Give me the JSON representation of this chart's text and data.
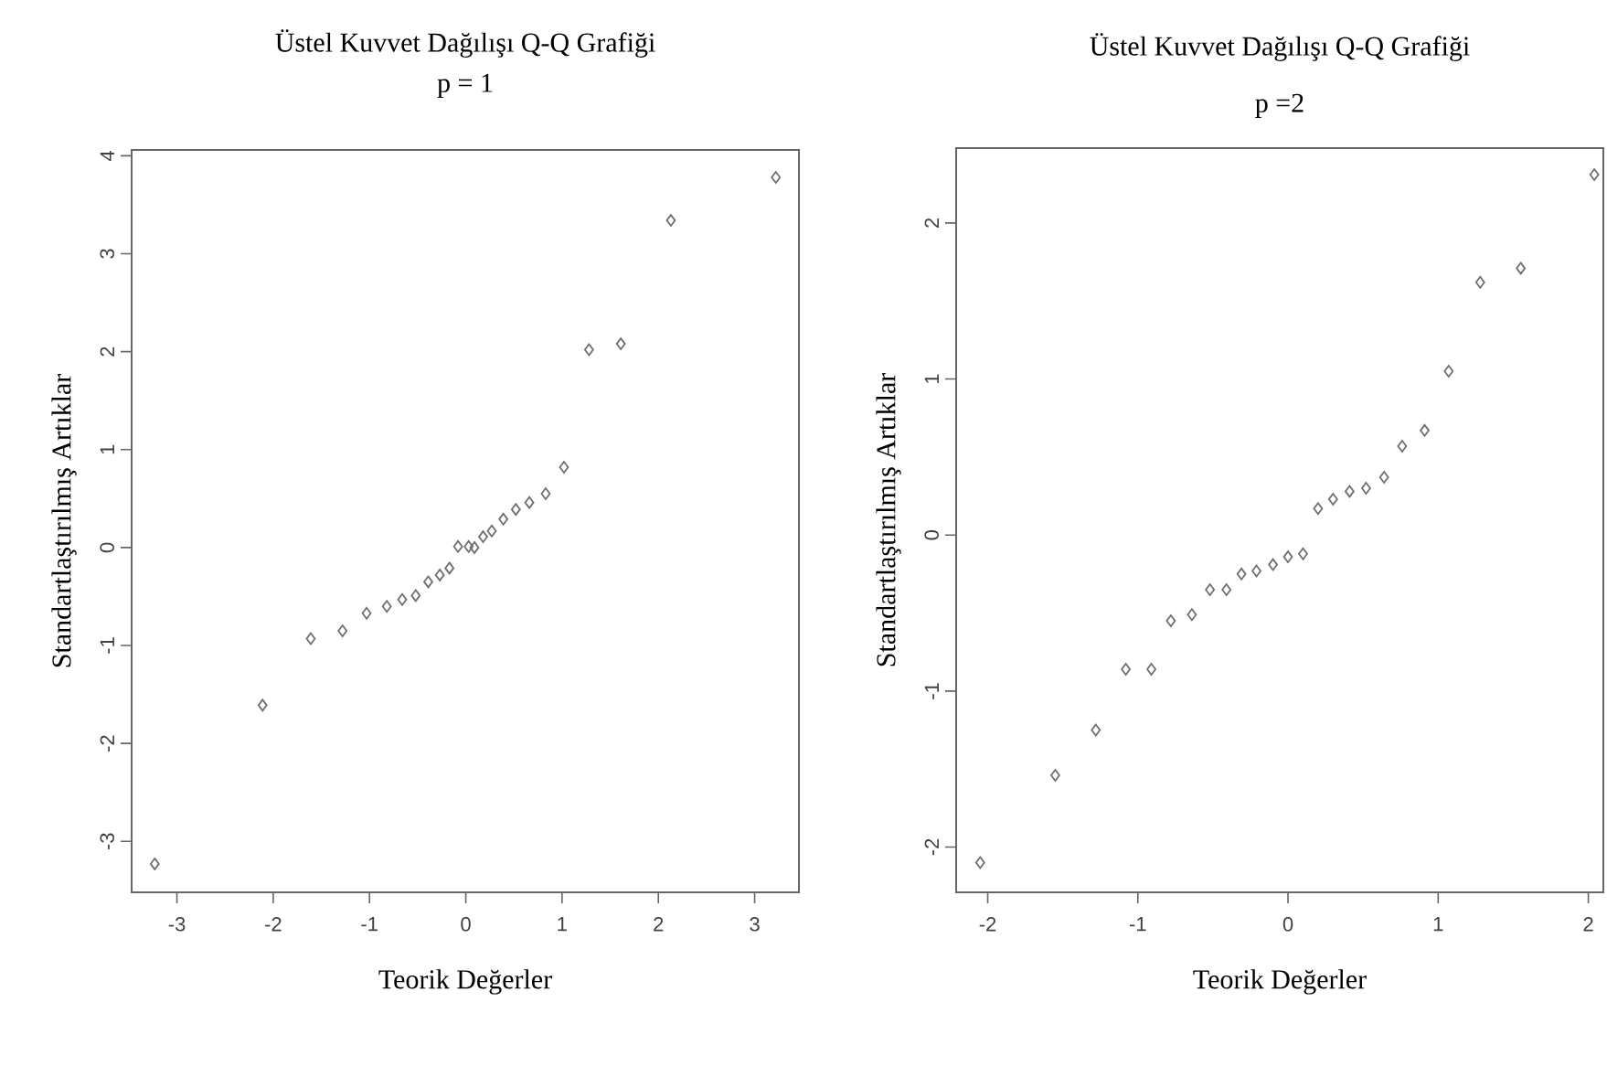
{
  "chart_data": [
    {
      "type": "scatter",
      "title": "Üstel Kuvvet Dağılışı Q-Q Grafiği",
      "subtitle": "p = 1",
      "xlabel": "Teorik Değerler",
      "ylabel": "Standartlaştırılmış Artıklar",
      "xlim": [
        -3.47,
        3.46
      ],
      "ylim": [
        -3.52,
        4.06
      ],
      "xticks": [
        -3,
        -2,
        -1,
        0,
        1,
        2,
        3
      ],
      "yticks": [
        -3,
        -2,
        -1,
        0,
        1,
        2,
        3,
        4
      ],
      "marker": "diamond",
      "grid": false,
      "series": [
        {
          "color": "#707070",
          "x": [
            -3.23,
            -2.11,
            -1.61,
            -1.28,
            -1.03,
            -0.82,
            -0.66,
            -0.52,
            -0.39,
            -0.27,
            -0.17,
            -0.08,
            0.03,
            0.09,
            0.18,
            0.27,
            0.39,
            0.52,
            0.66,
            0.83,
            1.02,
            1.28,
            1.61,
            2.13,
            3.22
          ],
          "values": [
            -3.23,
            -1.61,
            -0.93,
            -0.85,
            -0.67,
            -0.6,
            -0.53,
            -0.49,
            -0.35,
            -0.28,
            -0.21,
            0.01,
            0.01,
            0.0,
            0.11,
            0.17,
            0.29,
            0.39,
            0.46,
            0.55,
            0.82,
            2.02,
            2.08,
            3.34,
            3.78
          ]
        }
      ]
    },
    {
      "type": "scatter",
      "title": "Üstel Kuvvet Dağılışı Q-Q Grafiği",
      "subtitle": "p =2",
      "xlabel": "Teorik Değerler",
      "ylabel": "Standartlaştırılmış Artıklar",
      "xlim": [
        -2.21,
        2.1
      ],
      "ylim": [
        -2.29,
        2.48
      ],
      "xticks": [
        -2,
        -1,
        0,
        1,
        2
      ],
      "yticks": [
        -2,
        -1,
        0,
        1,
        2
      ],
      "marker": "diamond",
      "grid": false,
      "series": [
        {
          "color": "#707070",
          "x": [
            -2.05,
            -1.55,
            -1.28,
            -1.08,
            -0.91,
            -0.78,
            -0.64,
            -0.52,
            -0.41,
            -0.31,
            -0.21,
            -0.1,
            0.0,
            0.1,
            0.2,
            0.3,
            0.41,
            0.52,
            0.64,
            0.76,
            0.91,
            1.07,
            1.28,
            1.55,
            2.04
          ],
          "values": [
            -2.1,
            -1.54,
            -1.25,
            -0.86,
            -0.86,
            -0.55,
            -0.51,
            -0.35,
            -0.35,
            -0.25,
            -0.23,
            -0.19,
            -0.14,
            -0.12,
            0.17,
            0.23,
            0.28,
            0.3,
            0.37,
            0.57,
            0.67,
            1.05,
            1.62,
            1.71,
            2.31
          ]
        }
      ]
    }
  ]
}
